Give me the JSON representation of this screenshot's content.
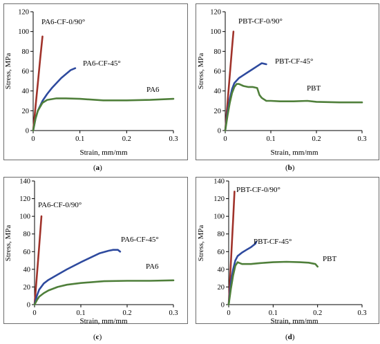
{
  "chart_data": [
    {
      "type": "line",
      "panel": "(a)",
      "caption_open": "(",
      "caption_letter": "a",
      "caption_close": ")",
      "xlabel": "Strain, mm/mm",
      "ylabel": "Stress, MPa",
      "xlim": [
        0,
        0.3
      ],
      "ylim": [
        0,
        120
      ],
      "xticks": [
        0,
        0.1,
        0.2,
        0.3
      ],
      "xtick_labels": [
        "0",
        "0.1",
        "0.2",
        "0.3"
      ],
      "yticks": [
        0,
        20,
        40,
        60,
        80,
        100,
        120
      ],
      "ytick_labels": [
        "0",
        "20",
        "40",
        "60",
        "80",
        "100",
        "120"
      ],
      "grid": false,
      "series": [
        {
          "name": "PA6-CF-0/90°",
          "color": "#a0322a",
          "x": [
            0,
            0.005,
            0.01,
            0.015,
            0.02
          ],
          "y": [
            0,
            24,
            48,
            72,
            95
          ]
        },
        {
          "name": "PA6-CF-45°",
          "color": "#2e4a9e",
          "x": [
            0,
            0.005,
            0.01,
            0.02,
            0.03,
            0.04,
            0.05,
            0.06,
            0.07,
            0.08,
            0.09
          ],
          "y": [
            0,
            12,
            20,
            30,
            37,
            43,
            48,
            53,
            57,
            61,
            63
          ]
        },
        {
          "name": "PA6",
          "color": "#4f7f3a",
          "x": [
            0,
            0.005,
            0.01,
            0.02,
            0.03,
            0.05,
            0.07,
            0.1,
            0.15,
            0.2,
            0.25,
            0.3
          ],
          "y": [
            0,
            12,
            20,
            28,
            31,
            32.5,
            32.5,
            32,
            30.5,
            30.5,
            31,
            32
          ]
        }
      ]
    },
    {
      "type": "line",
      "panel": "(b)",
      "caption_open": "(",
      "caption_letter": "b",
      "caption_close": ")",
      "xlabel": "Strain, mm/mm",
      "ylabel": "Stress, MPa",
      "xlim": [
        0,
        0.3
      ],
      "ylim": [
        0,
        120
      ],
      "xticks": [
        0,
        0.1,
        0.2,
        0.3
      ],
      "xtick_labels": [
        "0",
        "0.1",
        "0.2",
        "0.3"
      ],
      "yticks": [
        0,
        20,
        40,
        60,
        80,
        100,
        120
      ],
      "ytick_labels": [
        "0",
        "20",
        "40",
        "60",
        "80",
        "100",
        "120"
      ],
      "grid": false,
      "series": [
        {
          "name": "PBT-CF-0/90°",
          "color": "#a0322a",
          "x": [
            0,
            0.005,
            0.01,
            0.015,
            0.018
          ],
          "y": [
            0,
            28,
            56,
            84,
            100
          ]
        },
        {
          "name": "PBT-CF-45°",
          "color": "#2e4a9e",
          "x": [
            0,
            0.005,
            0.01,
            0.015,
            0.02,
            0.03,
            0.04,
            0.05,
            0.06,
            0.07,
            0.08,
            0.09
          ],
          "y": [
            0,
            18,
            32,
            42,
            48,
            53,
            56,
            59,
            62,
            65,
            68,
            67
          ]
        },
        {
          "name": "PBT",
          "color": "#4f7f3a",
          "x": [
            0,
            0.005,
            0.01,
            0.015,
            0.02,
            0.025,
            0.03,
            0.04,
            0.05,
            0.06,
            0.07,
            0.075,
            0.08,
            0.09,
            0.1,
            0.12,
            0.15,
            0.18,
            0.2,
            0.25,
            0.3
          ],
          "y": [
            0,
            15,
            28,
            38,
            44,
            47,
            47,
            45,
            44,
            44,
            43,
            36,
            33,
            30,
            30,
            29.5,
            29.5,
            30,
            29,
            28.5,
            28.5
          ]
        }
      ]
    },
    {
      "type": "line",
      "panel": "(c)",
      "caption_open": "(",
      "caption_letter": "c",
      "caption_close": ")",
      "xlabel": "Strain, mm/mm",
      "ylabel": "Stress, MPa",
      "xlim": [
        0,
        0.3
      ],
      "ylim": [
        0,
        140
      ],
      "xticks": [
        0,
        0.1,
        0.2,
        0.3
      ],
      "xtick_labels": [
        "0",
        "0.1",
        "0.2",
        "0.3"
      ],
      "yticks": [
        0,
        20,
        40,
        60,
        80,
        100,
        120,
        140
      ],
      "ytick_labels": [
        "0",
        "20",
        "40",
        "60",
        "80",
        "100",
        "120",
        "140"
      ],
      "grid": false,
      "series": [
        {
          "name": "PA6-CF-0/90°",
          "color": "#a0322a",
          "x": [
            0,
            0.005,
            0.01,
            0.015
          ],
          "y": [
            0,
            33,
            66,
            100
          ]
        },
        {
          "name": "PA6-CF-45°",
          "color": "#2e4a9e",
          "x": [
            0,
            0.005,
            0.01,
            0.02,
            0.03,
            0.05,
            0.07,
            0.1,
            0.12,
            0.14,
            0.16,
            0.17,
            0.18,
            0.185
          ],
          "y": [
            0,
            10,
            17,
            24,
            28,
            34,
            40,
            48,
            53,
            58,
            61,
            62,
            62,
            60
          ]
        },
        {
          "name": "PA6",
          "color": "#4f7f3a",
          "x": [
            0,
            0.005,
            0.01,
            0.02,
            0.03,
            0.05,
            0.07,
            0.1,
            0.15,
            0.2,
            0.25,
            0.3
          ],
          "y": [
            0,
            5,
            9,
            13,
            16,
            20,
            22.5,
            24.5,
            26.5,
            27,
            27,
            27.5
          ]
        }
      ]
    },
    {
      "type": "line",
      "panel": "(d)",
      "caption_open": "(",
      "caption_letter": "d",
      "caption_close": ")",
      "xlabel": "Strain, mm/mm",
      "ylabel": "Stress, MPa",
      "xlim": [
        0,
        0.3
      ],
      "ylim": [
        0,
        140
      ],
      "xticks": [
        0,
        0.1,
        0.2,
        0.3
      ],
      "xtick_labels": [
        "0",
        "0.1",
        "0.2",
        "0.3"
      ],
      "yticks": [
        0,
        20,
        40,
        60,
        80,
        100,
        120,
        140
      ],
      "ytick_labels": [
        "0",
        "20",
        "40",
        "60",
        "80",
        "100",
        "120",
        "140"
      ],
      "grid": false,
      "series": [
        {
          "name": "PBT-CF-0/90°",
          "color": "#a0322a",
          "x": [
            0,
            0.005,
            0.01,
            0.013
          ],
          "y": [
            0,
            48,
            96,
            128
          ]
        },
        {
          "name": "PBT-CF-45°",
          "color": "#2e4a9e",
          "x": [
            0,
            0.005,
            0.01,
            0.015,
            0.02,
            0.03,
            0.04,
            0.05,
            0.06,
            0.062
          ],
          "y": [
            0,
            25,
            40,
            50,
            55,
            59,
            62,
            65,
            69,
            71
          ]
        },
        {
          "name": "PBT",
          "color": "#4f7f3a",
          "x": [
            0,
            0.005,
            0.01,
            0.015,
            0.02,
            0.025,
            0.03,
            0.05,
            0.07,
            0.1,
            0.13,
            0.16,
            0.18,
            0.195,
            0.2
          ],
          "y": [
            0,
            18,
            33,
            44,
            48,
            47,
            46,
            46,
            47,
            48,
            48.5,
            48,
            47.5,
            46,
            43
          ]
        }
      ]
    }
  ]
}
